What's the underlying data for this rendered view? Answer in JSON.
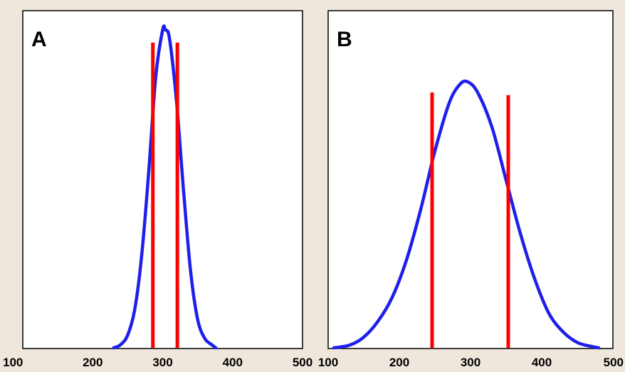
{
  "colors": {
    "background": "#EFE7DC",
    "curve": "#1F1FEA",
    "marker": "#FF0000",
    "frame": "#000000"
  },
  "chart_data": [
    {
      "type": "line",
      "panel_label": "A",
      "xlim": [
        100,
        500
      ],
      "x_ticks": [
        100,
        200,
        300,
        400,
        500
      ],
      "y_scale": "relative density",
      "grid": false,
      "legend": "none",
      "series": [
        {
          "x": [
            230,
            240,
            250,
            260,
            270,
            280,
            290,
            300,
            304,
            310,
            320,
            330,
            340,
            350,
            360,
            370,
            376
          ],
          "y": [
            0.0,
            0.01,
            0.04,
            0.12,
            0.29,
            0.55,
            0.85,
            1.0,
            1.0,
            0.97,
            0.77,
            0.49,
            0.24,
            0.09,
            0.03,
            0.01,
            0.0
          ]
        }
      ],
      "vlines": [
        {
          "x": 286,
          "height": 0.96
        },
        {
          "x": 321,
          "height": 0.96
        }
      ]
    },
    {
      "type": "line",
      "panel_label": "B",
      "xlim": [
        100,
        500
      ],
      "x_ticks": [
        100,
        200,
        300,
        400,
        500
      ],
      "y_scale": "relative density",
      "grid": false,
      "legend": "none",
      "series": [
        {
          "x": [
            108,
            130,
            150,
            170,
            190,
            210,
            230,
            250,
            270,
            285,
            296,
            310,
            330,
            350,
            370,
            390,
            410,
            430,
            450,
            470,
            480
          ],
          "y": [
            0.0,
            0.01,
            0.04,
            0.1,
            0.19,
            0.33,
            0.52,
            0.74,
            0.92,
            0.99,
            1.0,
            0.96,
            0.83,
            0.63,
            0.43,
            0.26,
            0.13,
            0.06,
            0.02,
            0.005,
            0.0
          ]
        }
      ],
      "vlines": [
        {
          "x": 246,
          "height": 0.96
        },
        {
          "x": 353,
          "height": 0.95
        }
      ]
    }
  ]
}
